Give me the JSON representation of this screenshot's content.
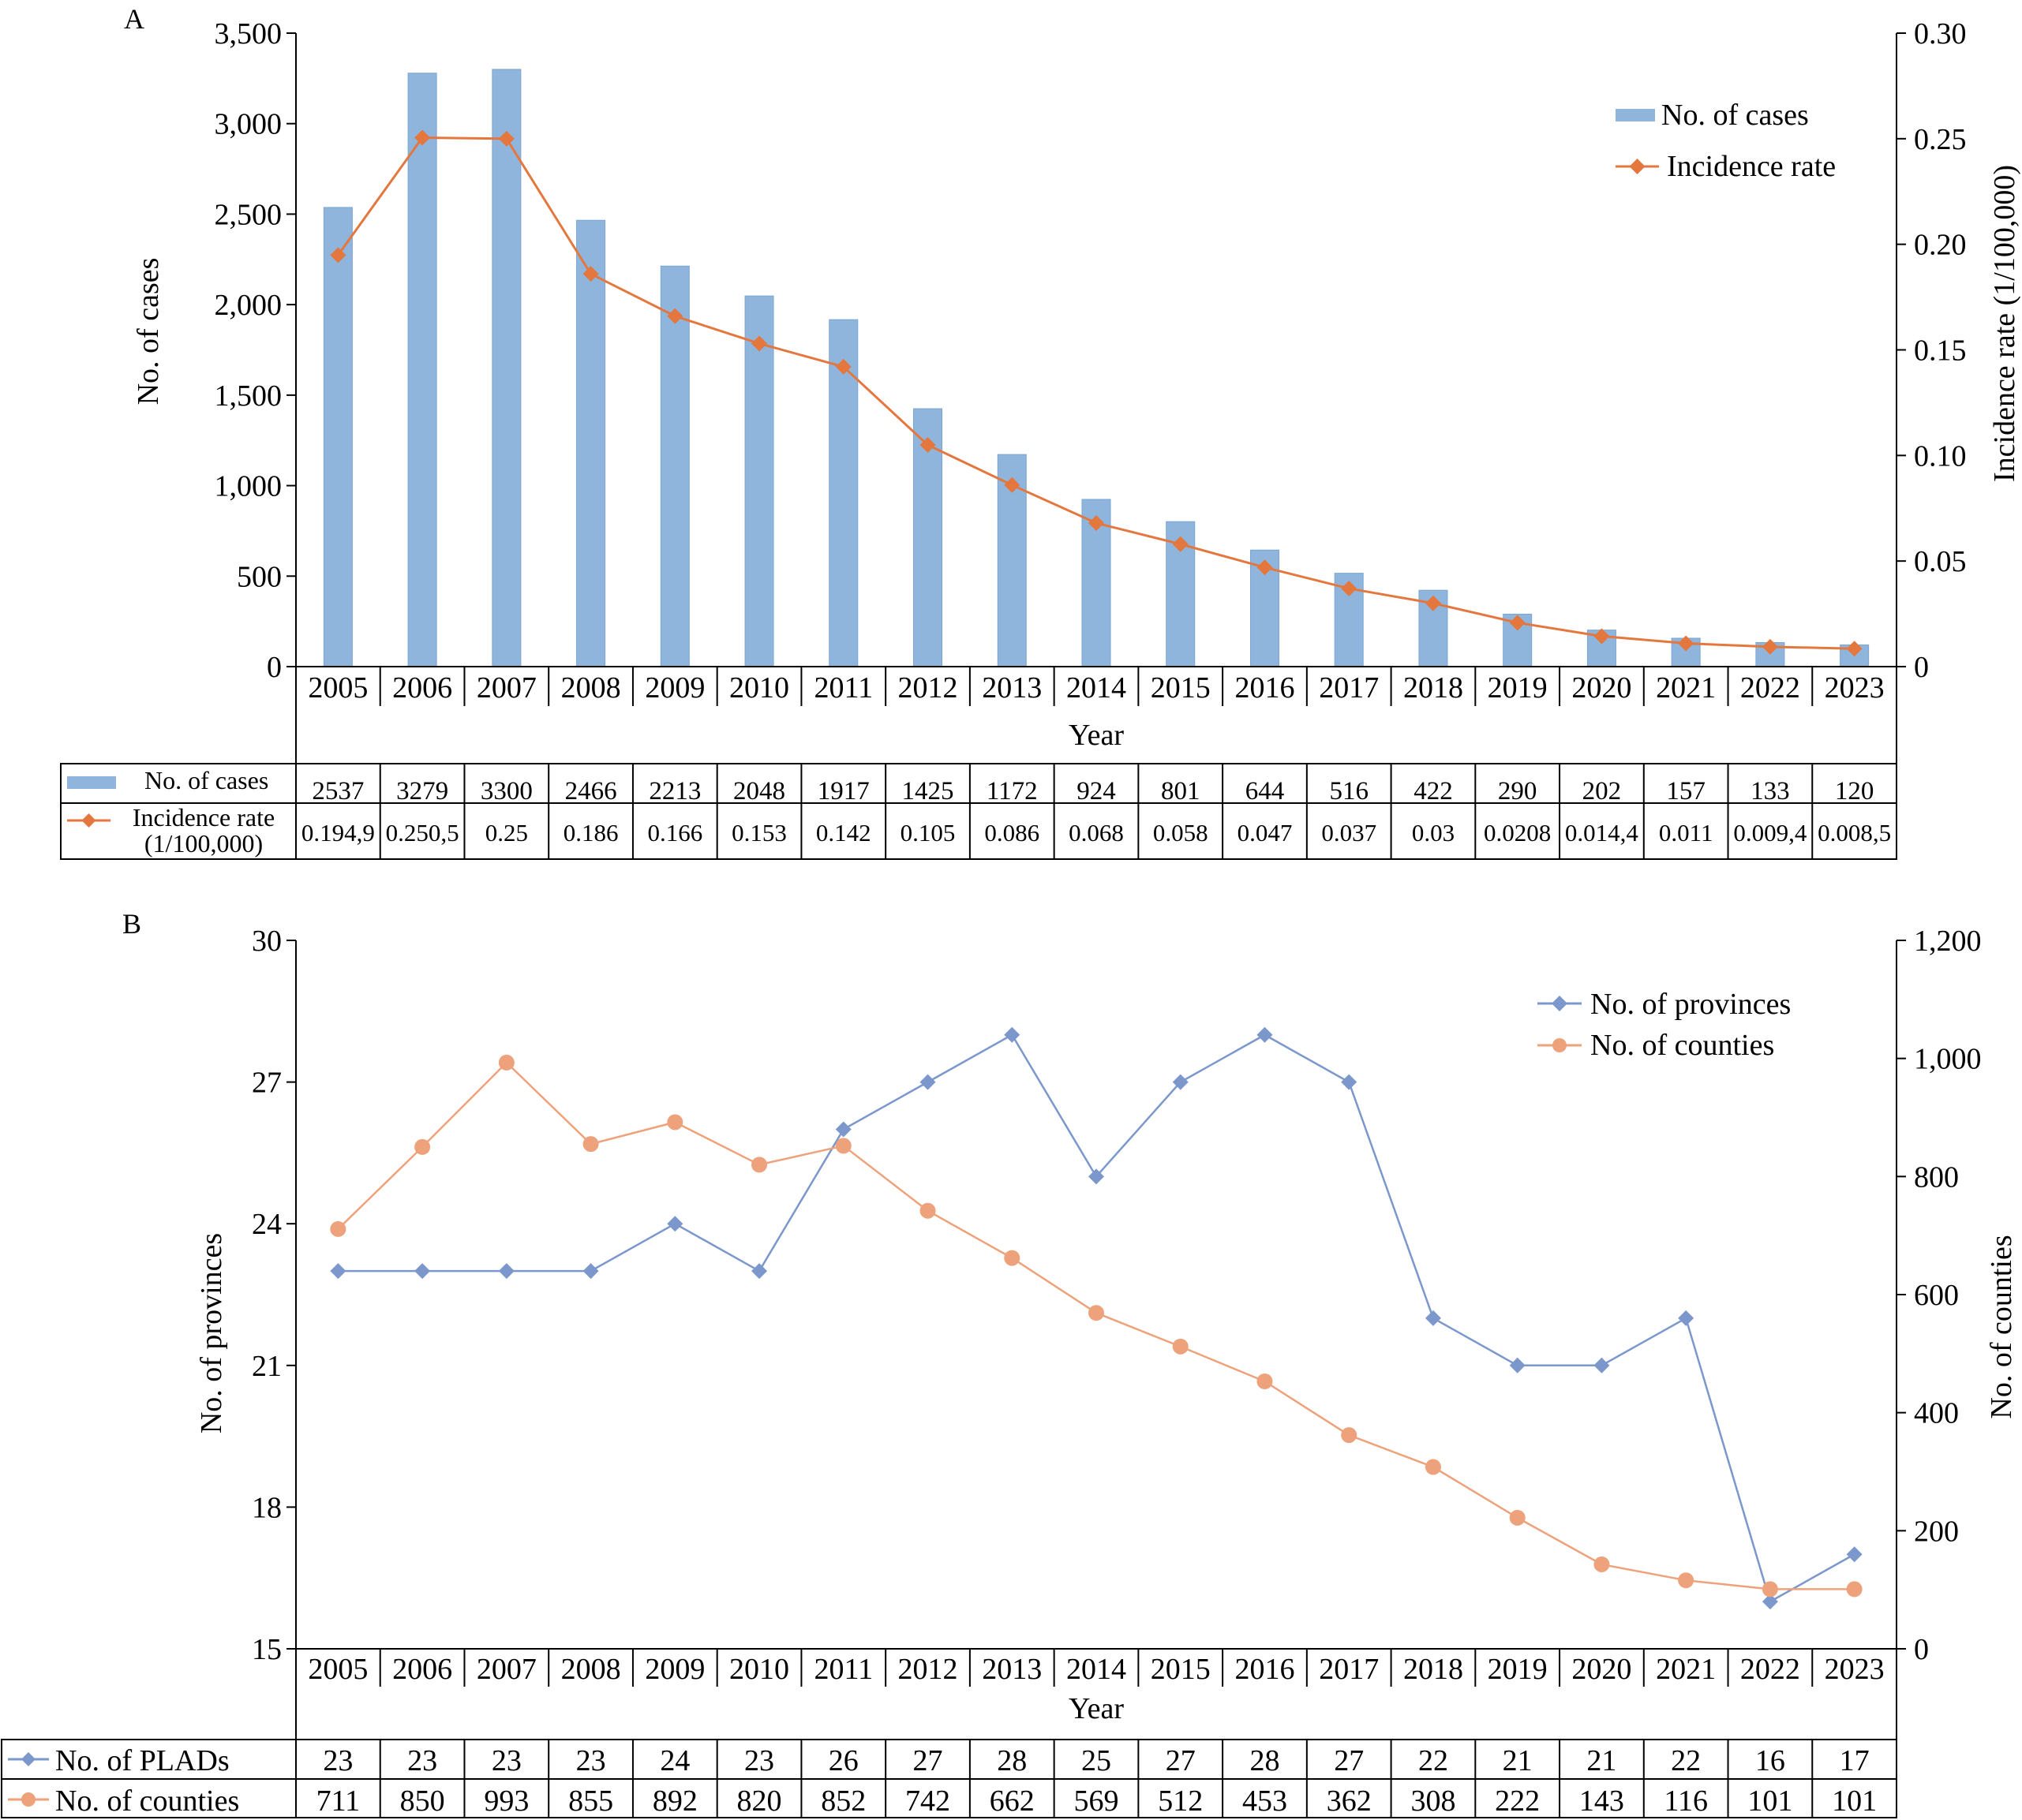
{
  "chart_data": [
    {
      "panel_label": "A",
      "type": "bar",
      "categories": [
        "2005",
        "2006",
        "2007",
        "2008",
        "2009",
        "2010",
        "2011",
        "2012",
        "2013",
        "2014",
        "2015",
        "2016",
        "2017",
        "2018",
        "2019",
        "2020",
        "2021",
        "2022",
        "2023"
      ],
      "series": [
        {
          "name": "No. of cases",
          "type": "bar",
          "axis": "left",
          "values": [
            2537,
            3279,
            3300,
            2466,
            2213,
            2048,
            1917,
            1425,
            1172,
            924,
            801,
            644,
            516,
            422,
            290,
            202,
            157,
            133,
            120
          ]
        },
        {
          "name": "Incidence rate",
          "type": "line",
          "axis": "right",
          "marker": "diamond",
          "values": [
            0.1949,
            0.2505,
            0.25,
            0.186,
            0.166,
            0.153,
            0.142,
            0.105,
            0.086,
            0.068,
            0.058,
            0.047,
            0.037,
            0.03,
            0.0208,
            0.0144,
            0.011,
            0.0094,
            0.0085
          ]
        }
      ],
      "xlabel": "Year",
      "ylabel": "No. of cases",
      "y2label": "Incidence rate (1/100,000)",
      "ylim": [
        0,
        3500
      ],
      "y2lim": [
        0,
        0.3
      ],
      "yticks": [
        "0",
        "500",
        "1,000",
        "1,500",
        "2,000",
        "2,500",
        "3,000",
        "3,500"
      ],
      "y2ticks": [
        "0",
        "0.05",
        "0.10",
        "0.15",
        "0.20",
        "0.25",
        "0.30"
      ],
      "legend": [
        "No. of cases",
        "Incidence rate"
      ],
      "legend_position": "top-right",
      "colors": {
        "bar": "#8fb5dc",
        "bar_edge": "#7aa5d1",
        "line": "#e4773e"
      },
      "table": {
        "rows": [
          {
            "label": "No. of cases",
            "cells": [
              "2537",
              "3279",
              "3300",
              "2466",
              "2213",
              "2048",
              "1917",
              "1425",
              "1172",
              "924",
              "801",
              "644",
              "516",
              "422",
              "290",
              "202",
              "157",
              "133",
              "120"
            ]
          },
          {
            "label_lines": [
              "Incidence rate",
              "(1/100,000)"
            ],
            "cells": [
              "0.194,9",
              "0.250,5",
              "0.25",
              "0.186",
              "0.166",
              "0.153",
              "0.142",
              "0.105",
              "0.086",
              "0.068",
              "0.058",
              "0.047",
              "0.037",
              "0.03",
              "0.0208",
              "0.014,4",
              "0.011",
              "0.009,4",
              "0.008,5"
            ]
          }
        ]
      }
    },
    {
      "panel_label": "B",
      "type": "line",
      "categories": [
        "2005",
        "2006",
        "2007",
        "2008",
        "2009",
        "2010",
        "2011",
        "2012",
        "2013",
        "2014",
        "2015",
        "2016",
        "2017",
        "2018",
        "2019",
        "2020",
        "2021",
        "2022",
        "2023"
      ],
      "series": [
        {
          "name": "No. of provinces",
          "axis": "left",
          "marker": "diamond",
          "values": [
            23,
            23,
            23,
            23,
            24,
            23,
            26,
            27,
            28,
            25,
            27,
            28,
            27,
            22,
            21,
            21,
            22,
            16,
            17
          ]
        },
        {
          "name": "No. of counties",
          "axis": "right",
          "marker": "circle",
          "values": [
            711,
            850,
            993,
            855,
            892,
            820,
            852,
            742,
            662,
            569,
            512,
            453,
            362,
            308,
            222,
            143,
            116,
            101,
            101
          ]
        }
      ],
      "xlabel": "Year",
      "ylabel": "No. of provinces",
      "y2label": "No. of counties",
      "ylim": [
        15,
        30
      ],
      "y2lim": [
        0,
        1200
      ],
      "yticks": [
        "15",
        "18",
        "21",
        "24",
        "27",
        "30"
      ],
      "y2ticks": [
        "0",
        "200",
        "400",
        "600",
        "800",
        "1,000",
        "1,200"
      ],
      "legend": [
        "No. of provinces",
        "No. of counties"
      ],
      "legend_position": "top-right",
      "colors": {
        "provinces": "#7b97cc",
        "counties": "#eda27b"
      },
      "table": {
        "rows": [
          {
            "label": "No. of PLADs",
            "cells": [
              "23",
              "23",
              "23",
              "23",
              "24",
              "23",
              "26",
              "27",
              "28",
              "25",
              "27",
              "28",
              "27",
              "22",
              "21",
              "21",
              "22",
              "16",
              "17"
            ]
          },
          {
            "label": "No. of counties",
            "cells": [
              "711",
              "850",
              "993",
              "855",
              "892",
              "820",
              "852",
              "742",
              "662",
              "569",
              "512",
              "453",
              "362",
              "308",
              "222",
              "143",
              "116",
              "101",
              "101"
            ]
          }
        ]
      }
    }
  ]
}
